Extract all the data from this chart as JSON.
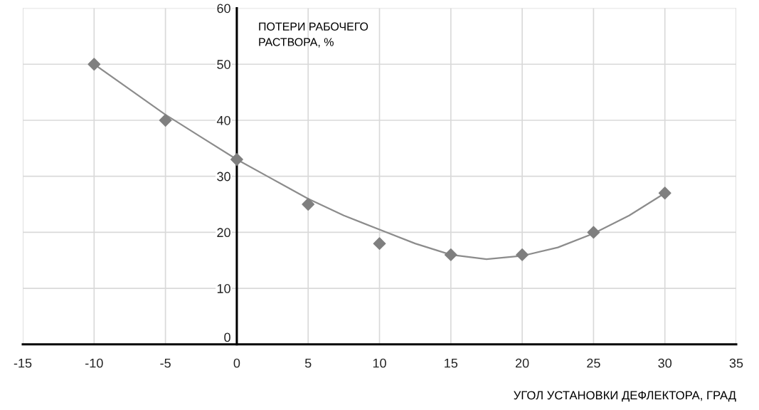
{
  "chart_data": {
    "type": "scatter",
    "xlabel": "УГОЛ УСТАНОВКИ ДЕФЛЕКТОРА, ГРАД",
    "ylabel": "ПОТЕРИ РАБОЧЕГО\nРАСТВОРА, %",
    "xlim": [
      -15,
      35
    ],
    "xticks": [
      -15,
      -10,
      -5,
      0,
      5,
      10,
      15,
      20,
      25,
      30,
      35
    ],
    "ylim": [
      0,
      60
    ],
    "yticks": [
      0,
      10,
      20,
      30,
      40,
      50,
      60
    ],
    "grid": true,
    "series": [
      {
        "type": "line",
        "color": "#8c8c8c",
        "marker": "none",
        "x": [
          -10,
          -7.5,
          -5,
          -2.5,
          0,
          2.5,
          5,
          7.5,
          10,
          12.5,
          15,
          17.5,
          20,
          22.5,
          25,
          27.5,
          30
        ],
        "values": [
          50,
          45.5,
          41,
          37,
          33,
          29.5,
          26,
          23,
          20.5,
          18,
          16,
          15.2,
          15.8,
          17.3,
          19.8,
          23,
          27
        ]
      },
      {
        "color": "#7f7f7f",
        "marker": "diamond",
        "x": [
          -10,
          -5,
          0,
          5,
          10,
          15,
          20,
          25,
          30
        ],
        "values": [
          50,
          40,
          33,
          25,
          18,
          16,
          16,
          20,
          27
        ]
      }
    ]
  }
}
